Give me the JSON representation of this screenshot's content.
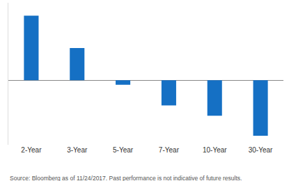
{
  "chart_data": {
    "type": "bar",
    "categories": [
      "2-Year",
      "3-Year",
      "5-Year",
      "7-Year",
      "10-Year",
      "30-Year"
    ],
    "values": [
      10,
      5,
      -0.7,
      -3.9,
      -5.5,
      -8.6
    ],
    "color": "#1570c4",
    "ylim": [
      -10,
      12
    ],
    "yticks": [
      0
    ],
    "grid": false,
    "tick_labels": "x",
    "annotation": "Source: Bloomberg as of 11/24/2017. Past performance is not indicative of future results."
  }
}
